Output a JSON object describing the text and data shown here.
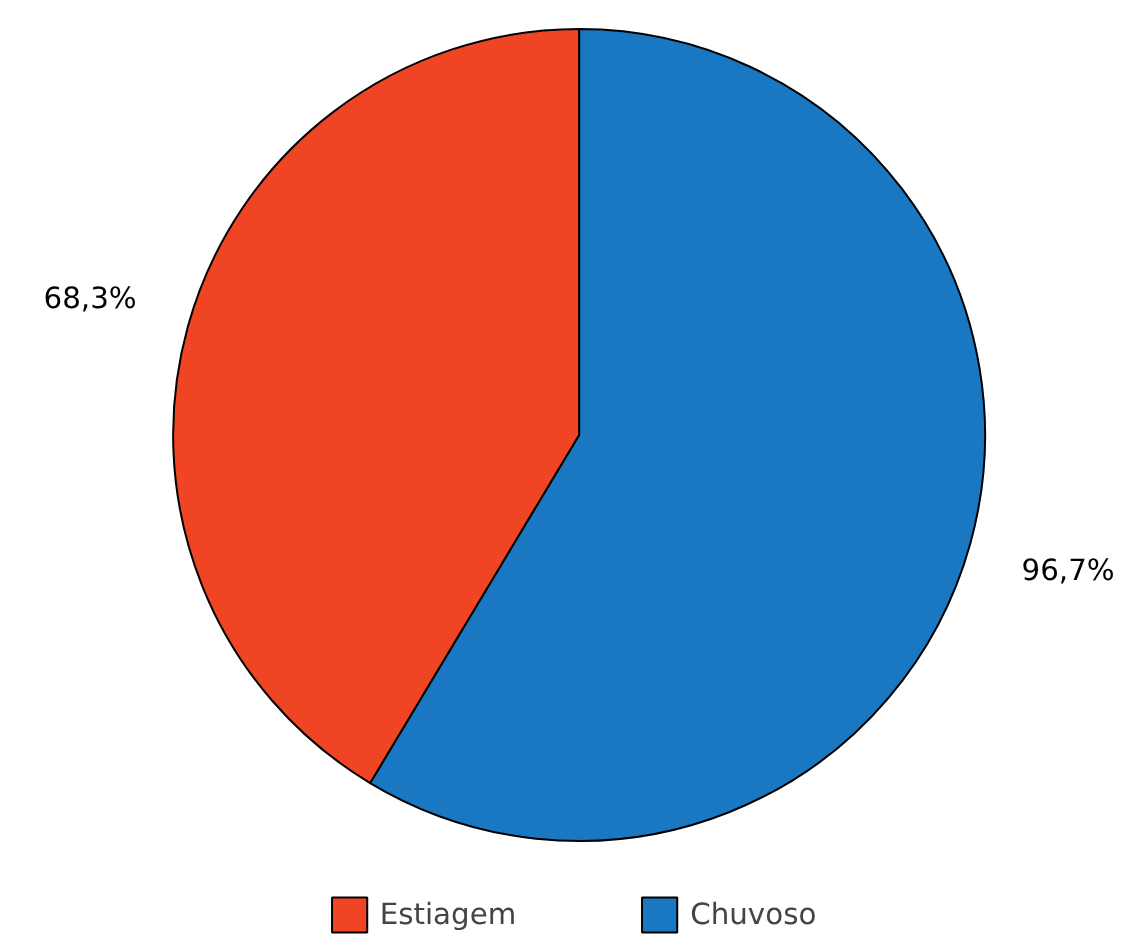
{
  "chart_data": {
    "type": "pie",
    "categories": [
      "Estiagem",
      "Chuvoso"
    ],
    "values": [
      68.3,
      96.7
    ],
    "colors": [
      "#f04524",
      "#1a77c1"
    ],
    "value_labels": [
      "68,3%",
      "96,7%"
    ],
    "legend": "bottom"
  }
}
